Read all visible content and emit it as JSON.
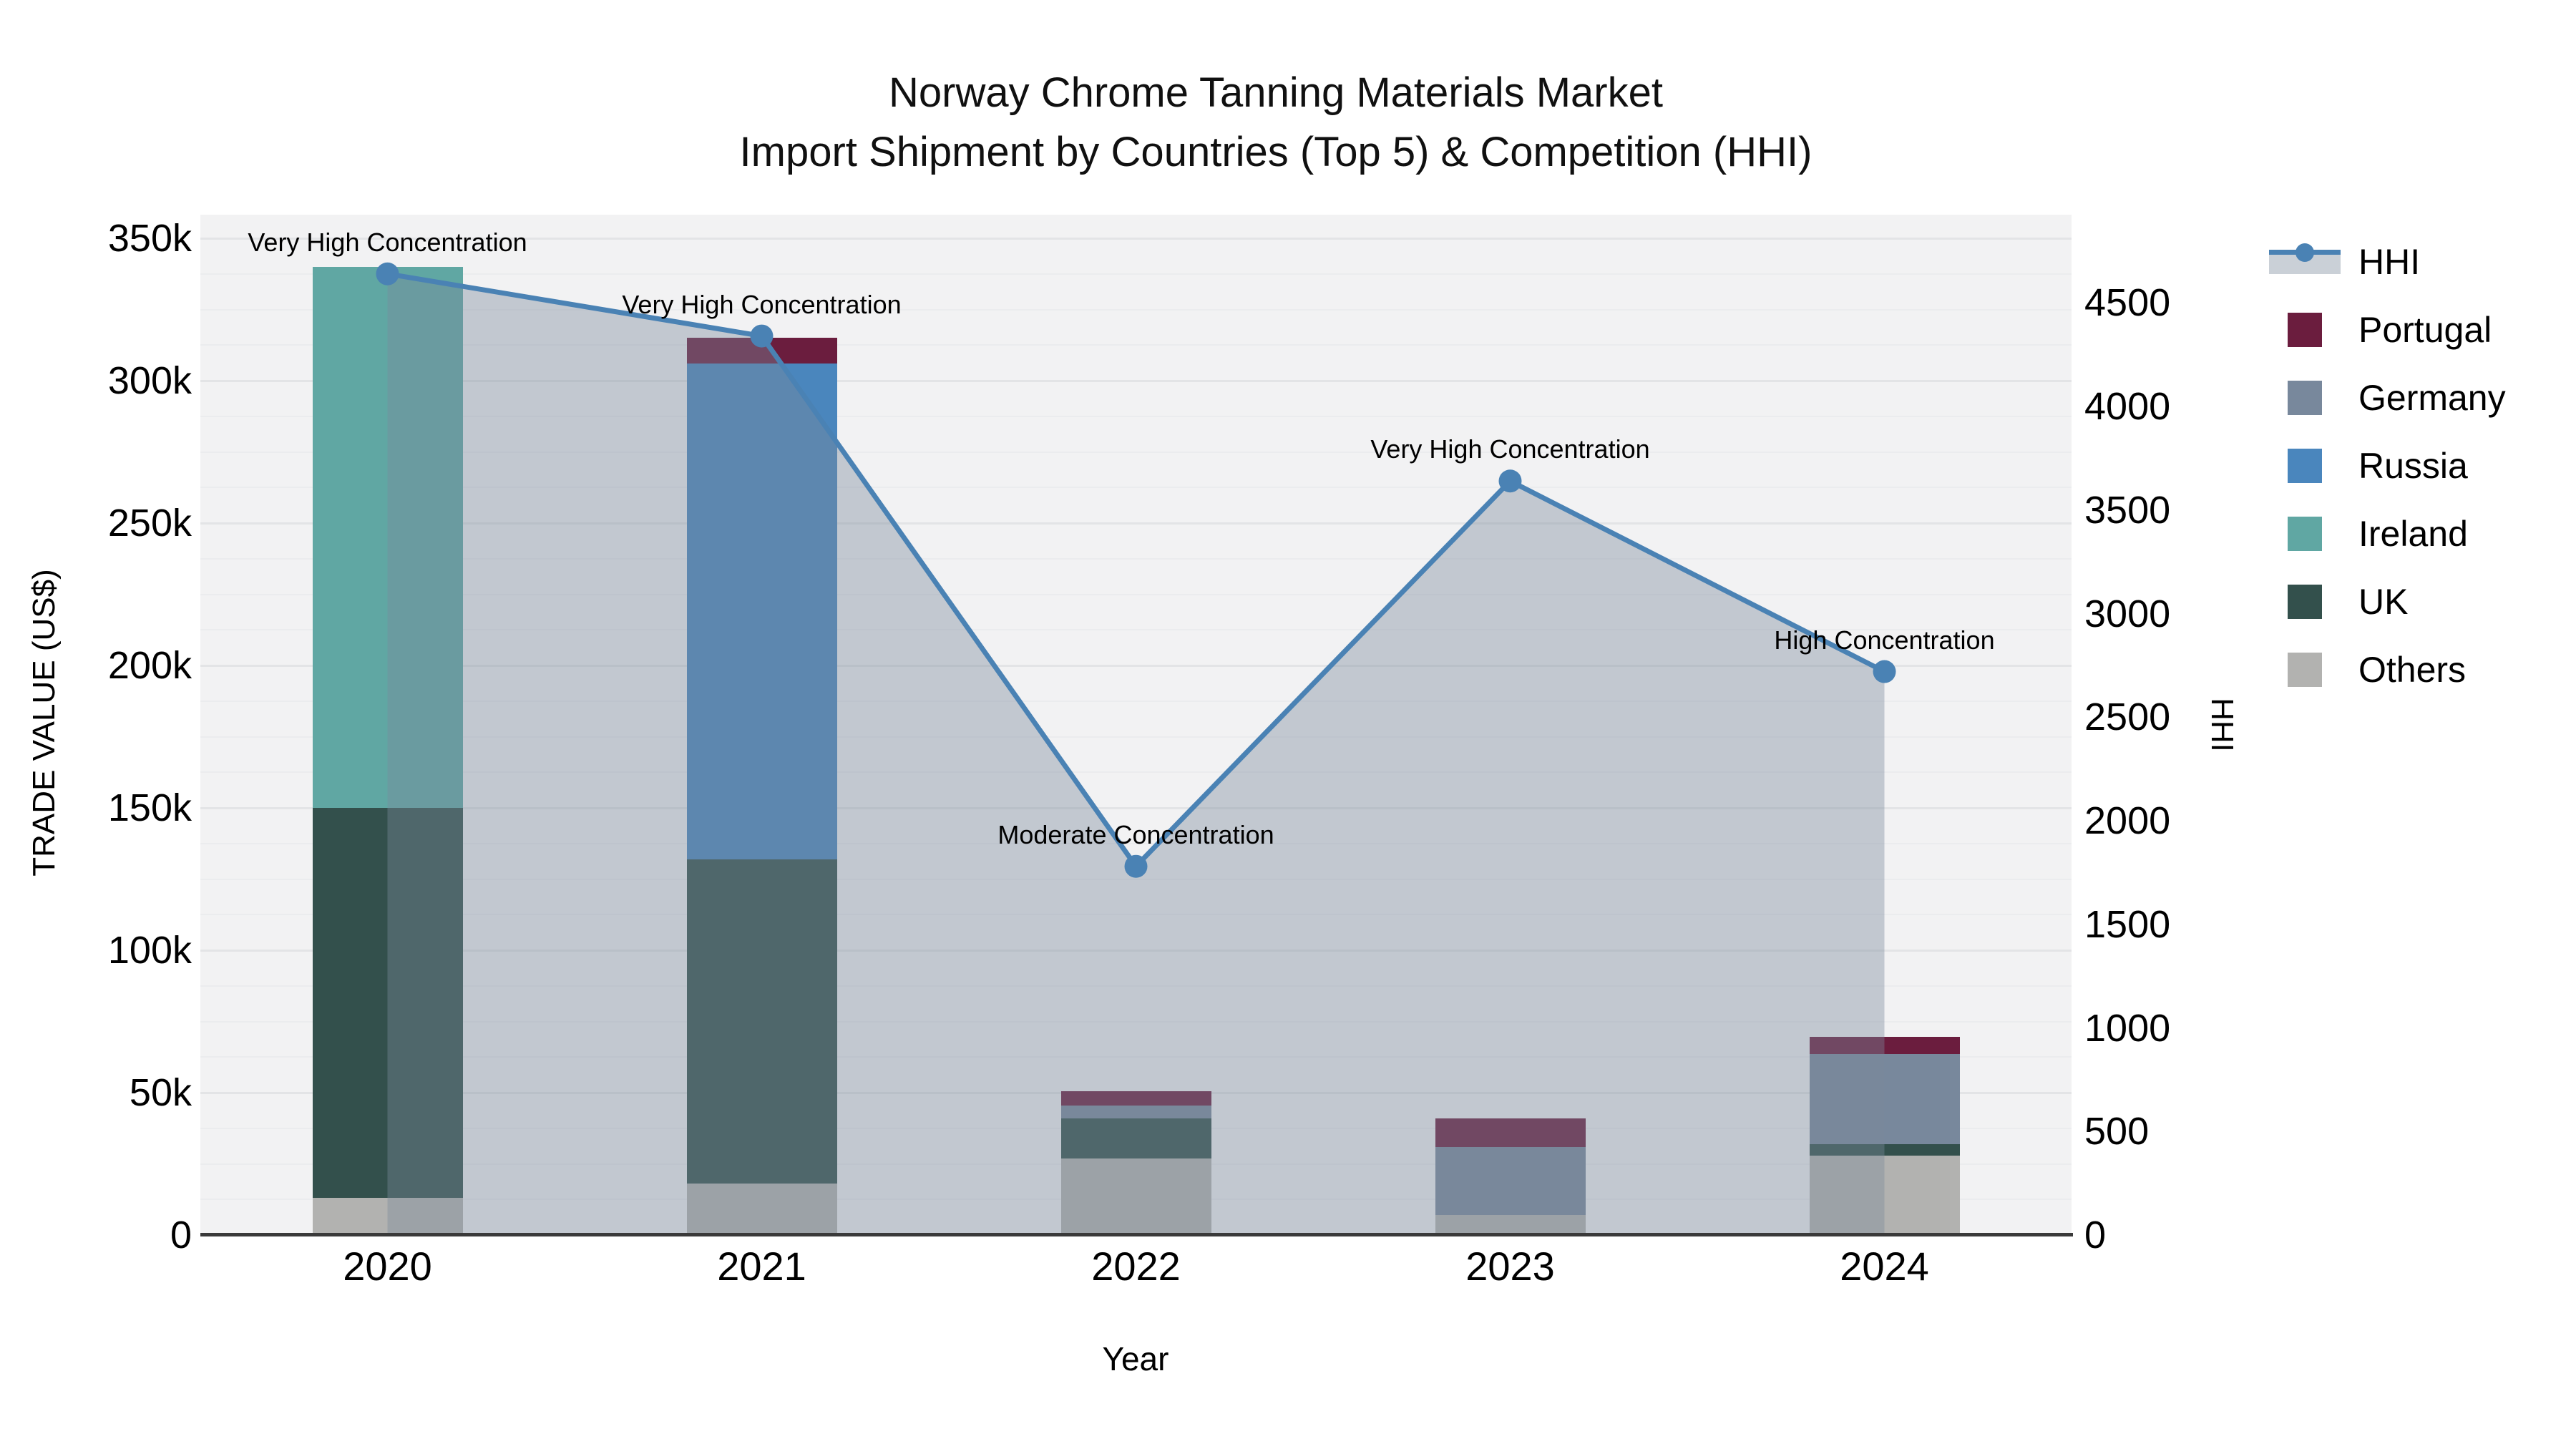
{
  "title": {
    "line1": "Norway Chrome Tanning Materials Market",
    "line2": "Import Shipment by Countries (Top 5) & Competition (HHI)"
  },
  "axes": {
    "left": {
      "title": "TRADE VALUE (US$)",
      "ticks": [
        "0",
        "50k",
        "100k",
        "150k",
        "200k",
        "250k",
        "300k",
        "350k"
      ]
    },
    "right": {
      "title": "HHI",
      "ticks": [
        "0",
        "500",
        "1000",
        "1500",
        "2000",
        "2500",
        "3000",
        "3500",
        "4000",
        "4500"
      ]
    },
    "x": {
      "title": "Year",
      "ticks": [
        "2020",
        "2021",
        "2022",
        "2023",
        "2024"
      ]
    }
  },
  "legend": {
    "items": [
      {
        "label": "HHI",
        "type": "line",
        "color": "#4a82b4"
      },
      {
        "label": "Portugal",
        "type": "square",
        "color": "#6b1d3e"
      },
      {
        "label": "Germany",
        "type": "square",
        "color": "#78889c"
      },
      {
        "label": "Russia",
        "type": "square",
        "color": "#4a86bd"
      },
      {
        "label": "Ireland",
        "type": "square",
        "color": "#60a7a3"
      },
      {
        "label": "UK",
        "type": "square",
        "color": "#33504c"
      },
      {
        "label": "Others",
        "type": "square",
        "color": "#b2b2b0"
      }
    ]
  },
  "chart_data": {
    "type": "bar+line",
    "title": "Norway Chrome Tanning Materials Market — Import Shipment by Countries (Top 5) & Competition (HHI)",
    "categories": [
      "2020",
      "2021",
      "2022",
      "2023",
      "2024"
    ],
    "bar_value_unit": "thousand US$",
    "stack_order_bottom_to_top": [
      "Others",
      "UK",
      "Ireland",
      "Russia",
      "Germany",
      "Portugal"
    ],
    "series": [
      {
        "name": "Others",
        "color": "#b2b2b0",
        "values": [
          13,
          18,
          27,
          7,
          28
        ]
      },
      {
        "name": "UK",
        "color": "#33504c",
        "values": [
          137,
          114,
          14,
          0,
          4
        ]
      },
      {
        "name": "Ireland",
        "color": "#60a7a3",
        "values": [
          190,
          0,
          0,
          0,
          0
        ]
      },
      {
        "name": "Russia",
        "color": "#4a86bd",
        "values": [
          0,
          174,
          0,
          0,
          0
        ]
      },
      {
        "name": "Germany",
        "color": "#78889c",
        "values": [
          0,
          0,
          4.5,
          24,
          31.5
        ]
      },
      {
        "name": "Portugal",
        "color": "#6b1d3e",
        "values": [
          0,
          9,
          5,
          10,
          6
        ]
      }
    ],
    "bar_totals": [
      340,
      315,
      50.5,
      41,
      69.5
    ],
    "line": {
      "name": "HHI",
      "color": "#4a82b4",
      "fill_color": "rgba(123,137,156,0.40)",
      "values": [
        4640,
        4340,
        1780,
        3640,
        2720
      ]
    },
    "annotations": [
      {
        "category": "2020",
        "text": "Very High Concentration"
      },
      {
        "category": "2021",
        "text": "Very High Concentration"
      },
      {
        "category": "2022",
        "text": "Moderate Concentration"
      },
      {
        "category": "2023",
        "text": "Very High Concentration"
      },
      {
        "category": "2024",
        "text": "High Concentration"
      }
    ],
    "xlabel": "Year",
    "ylabel_left": "TRADE VALUE (US$)",
    "ylabel_right": "HHI",
    "ylim_left": [
      0,
      350000
    ],
    "ylim_right": [
      0,
      4500
    ],
    "grid": true,
    "legend_position": "right"
  }
}
